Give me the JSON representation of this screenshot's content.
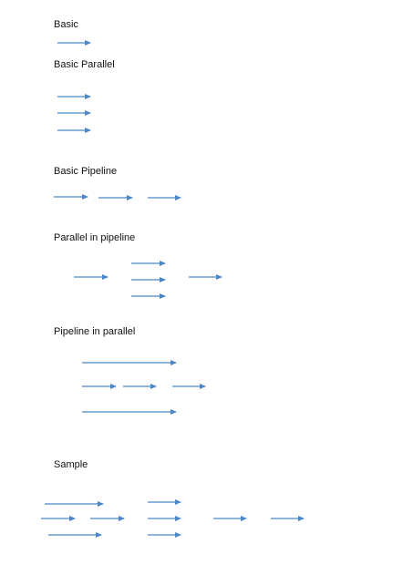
{
  "arrow_color": "#4A86C8",
  "sections": {
    "basic": {
      "title": "Basic"
    },
    "basic_parallel": {
      "title": "Basic Parallel"
    },
    "basic_pipeline": {
      "title": "Basic Pipeline"
    },
    "parallel_in_pipeline": {
      "title": "Parallel in pipeline"
    },
    "pipeline_in_parallel": {
      "title": "Pipeline in parallel"
    },
    "sample": {
      "title": "Sample"
    }
  }
}
